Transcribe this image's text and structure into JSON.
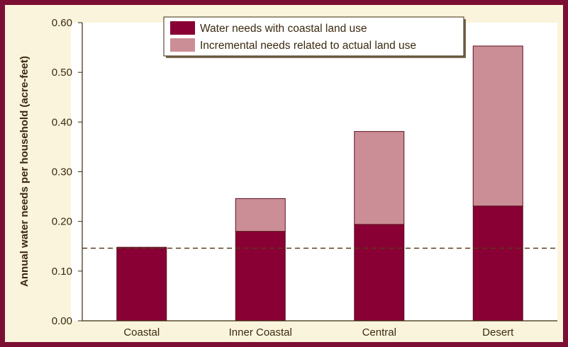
{
  "chart_data": {
    "type": "bar",
    "stacked": true,
    "categories": [
      "Coastal",
      "Inner Coastal",
      "Central",
      "Desert"
    ],
    "series": [
      {
        "name": "Water needs with coastal land use",
        "values": [
          0.148,
          0.18,
          0.194,
          0.231
        ]
      },
      {
        "name": "Incremental needs related to actual land use",
        "values": [
          0,
          0.066,
          0.187,
          0.322
        ]
      }
    ],
    "reference_line": {
      "value": 0.146,
      "style": "dashed"
    },
    "ylabel": "Annual water needs per household (acre-feet)",
    "xlabel": "",
    "ylim": [
      0,
      0.6
    ],
    "yticks": [
      "0.00",
      "0.10",
      "0.20",
      "0.30",
      "0.40",
      "0.50",
      "0.60"
    ],
    "grid": false,
    "legend_position": "top-center",
    "colors": {
      "frame": "#7a0f33",
      "panel_background": "#fbf4dd",
      "plot_background": "#ffffff",
      "series_base": "#880034",
      "series_incremental": "#cc8e96",
      "axis": "#3a2a10",
      "reference_line": "#5a3b1c"
    }
  }
}
